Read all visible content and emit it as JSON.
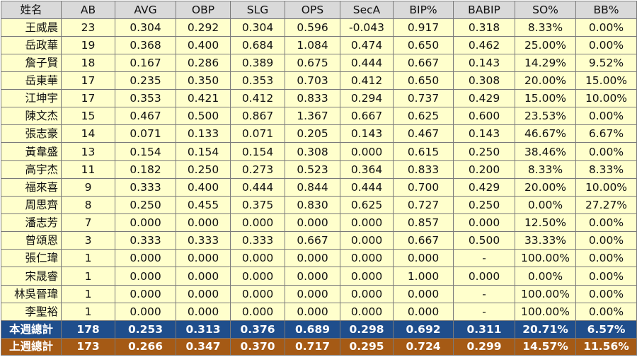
{
  "headers": [
    "姓名",
    "AB",
    "AVG",
    "OBP",
    "SLG",
    "OPS",
    "SecA",
    "BIP%",
    "BABIP",
    "SO%",
    "BB%"
  ],
  "rows": [
    [
      "王威晨",
      "23",
      "0.304",
      "0.292",
      "0.304",
      "0.596",
      "-0.043",
      "0.917",
      "0.318",
      "8.33%",
      "0.00%"
    ],
    [
      "岳政華",
      "19",
      "0.368",
      "0.400",
      "0.684",
      "1.084",
      "0.474",
      "0.650",
      "0.462",
      "25.00%",
      "0.00%"
    ],
    [
      "詹子賢",
      "18",
      "0.167",
      "0.286",
      "0.389",
      "0.675",
      "0.444",
      "0.667",
      "0.143",
      "14.29%",
      "9.52%"
    ],
    [
      "岳東華",
      "17",
      "0.235",
      "0.350",
      "0.353",
      "0.703",
      "0.412",
      "0.650",
      "0.308",
      "20.00%",
      "15.00%"
    ],
    [
      "江坤宇",
      "17",
      "0.353",
      "0.421",
      "0.412",
      "0.833",
      "0.294",
      "0.737",
      "0.429",
      "15.00%",
      "10.00%"
    ],
    [
      "陳文杰",
      "15",
      "0.467",
      "0.500",
      "0.867",
      "1.367",
      "0.667",
      "0.625",
      "0.600",
      "23.53%",
      "0.00%"
    ],
    [
      "張志豪",
      "14",
      "0.071",
      "0.133",
      "0.071",
      "0.205",
      "0.143",
      "0.467",
      "0.143",
      "46.67%",
      "6.67%"
    ],
    [
      "黃韋盛",
      "13",
      "0.154",
      "0.154",
      "0.154",
      "0.308",
      "0.000",
      "0.615",
      "0.250",
      "38.46%",
      "0.00%"
    ],
    [
      "高宇杰",
      "11",
      "0.182",
      "0.250",
      "0.273",
      "0.523",
      "0.364",
      "0.833",
      "0.200",
      "8.33%",
      "8.33%"
    ],
    [
      "福來喜",
      "9",
      "0.333",
      "0.400",
      "0.444",
      "0.844",
      "0.444",
      "0.700",
      "0.429",
      "20.00%",
      "10.00%"
    ],
    [
      "周思齊",
      "8",
      "0.250",
      "0.455",
      "0.375",
      "0.830",
      "0.625",
      "0.727",
      "0.250",
      "0.00%",
      "27.27%"
    ],
    [
      "潘志芳",
      "7",
      "0.000",
      "0.000",
      "0.000",
      "0.000",
      "0.000",
      "0.857",
      "0.000",
      "12.50%",
      "0.00%"
    ],
    [
      "曾頌恩",
      "3",
      "0.333",
      "0.333",
      "0.333",
      "0.667",
      "0.000",
      "0.667",
      "0.500",
      "33.33%",
      "0.00%"
    ],
    [
      "張仁瑋",
      "1",
      "0.000",
      "0.000",
      "0.000",
      "0.000",
      "0.000",
      "0.000",
      "-",
      "100.00%",
      "0.00%"
    ],
    [
      "宋晟睿",
      "1",
      "0.000",
      "0.000",
      "0.000",
      "0.000",
      "0.000",
      "1.000",
      "0.000",
      "0.00%",
      "0.00%"
    ],
    [
      "林吳晉瑋",
      "1",
      "0.000",
      "0.000",
      "0.000",
      "0.000",
      "0.000",
      "0.000",
      "-",
      "100.00%",
      "0.00%"
    ],
    [
      "李聖裕",
      "1",
      "0.000",
      "0.000",
      "0.000",
      "0.000",
      "0.000",
      "0.000",
      "-",
      "100.00%",
      "0.00%"
    ]
  ],
  "totals": [
    {
      "label": "本週總計",
      "values": [
        "178",
        "0.253",
        "0.313",
        "0.376",
        "0.689",
        "0.298",
        "0.692",
        "0.311",
        "20.71%",
        "6.57%"
      ]
    },
    {
      "label": "上週總計",
      "values": [
        "173",
        "0.266",
        "0.347",
        "0.370",
        "0.717",
        "0.295",
        "0.724",
        "0.299",
        "14.57%",
        "11.56%"
      ]
    }
  ],
  "colors": {
    "header_bg": "#d9d9d9",
    "row_bg": "#ffffcc",
    "this_week_bg": "#1f4e8c",
    "last_week_bg": "#a55a15"
  }
}
